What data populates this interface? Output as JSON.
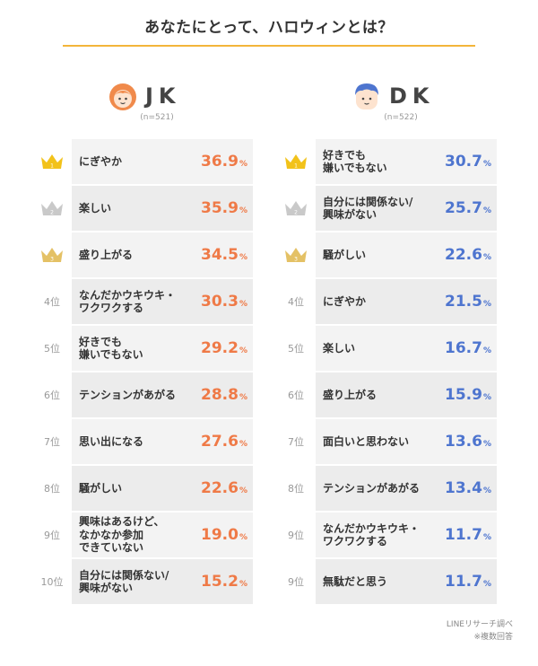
{
  "title": "あなたにとって、ハロウィンとは？",
  "colors": {
    "accent_rule": "#f3b53a",
    "jk_value": "#ef7a47",
    "dk_value": "#4e75cf",
    "gold": "#f2c21a",
    "silver": "#c9c9c9",
    "bronze": "#e4c165"
  },
  "groups": [
    {
      "name": "JK",
      "sample": "(n=521)",
      "icon": "girl-face-icon",
      "rows": [
        {
          "rank": "1",
          "medal": "gold",
          "label": "にぎやか",
          "value": "36.9",
          "unit": "%"
        },
        {
          "rank": "2",
          "medal": "silver",
          "label": "楽しい",
          "value": "35.9",
          "unit": "%"
        },
        {
          "rank": "3",
          "medal": "bronze",
          "label": "盛り上がる",
          "value": "34.5",
          "unit": "%"
        },
        {
          "rank": "4位",
          "medal": "",
          "label": "なんだかウキウキ・\nワクワクする",
          "value": "30.3",
          "unit": "%"
        },
        {
          "rank": "5位",
          "medal": "",
          "label": "好きでも\n嫌いでもない",
          "value": "29.2",
          "unit": "%"
        },
        {
          "rank": "6位",
          "medal": "",
          "label": "テンションがあがる",
          "value": "28.8",
          "unit": "%"
        },
        {
          "rank": "7位",
          "medal": "",
          "label": "思い出になる",
          "value": "27.6",
          "unit": "%"
        },
        {
          "rank": "8位",
          "medal": "",
          "label": "騒がしい",
          "value": "22.6",
          "unit": "%"
        },
        {
          "rank": "9位",
          "medal": "",
          "label": "興味はあるけど、\nなかなか参加\nできていない",
          "value": "19.0",
          "unit": "%"
        },
        {
          "rank": "10位",
          "medal": "",
          "label": "自分には関係ない/\n興味がない",
          "value": "15.2",
          "unit": "%"
        }
      ]
    },
    {
      "name": "DK",
      "sample": "(n=522)",
      "icon": "boy-face-icon",
      "rows": [
        {
          "rank": "1",
          "medal": "gold",
          "label": "好きでも\n嫌いでもない",
          "value": "30.7",
          "unit": "%"
        },
        {
          "rank": "2",
          "medal": "silver",
          "label": "自分には関係ない/\n興味がない",
          "value": "25.7",
          "unit": "%"
        },
        {
          "rank": "3",
          "medal": "bronze",
          "label": "騒がしい",
          "value": "22.6",
          "unit": "%"
        },
        {
          "rank": "4位",
          "medal": "",
          "label": "にぎやか",
          "value": "21.5",
          "unit": "%"
        },
        {
          "rank": "5位",
          "medal": "",
          "label": "楽しい",
          "value": "16.7",
          "unit": "%"
        },
        {
          "rank": "6位",
          "medal": "",
          "label": "盛り上がる",
          "value": "15.9",
          "unit": "%"
        },
        {
          "rank": "7位",
          "medal": "",
          "label": "面白いと思わない",
          "value": "13.6",
          "unit": "%"
        },
        {
          "rank": "8位",
          "medal": "",
          "label": "テンションがあがる",
          "value": "13.4",
          "unit": "%"
        },
        {
          "rank": "9位",
          "medal": "",
          "label": "なんだかウキウキ・\nワクワクする",
          "value": "11.7",
          "unit": "%"
        },
        {
          "rank": "9位",
          "medal": "",
          "label": "無駄だと思う",
          "value": "11.7",
          "unit": "%"
        }
      ]
    }
  ],
  "footer": {
    "source": "LINEリサーチ調べ",
    "note": "※複数回答"
  }
}
